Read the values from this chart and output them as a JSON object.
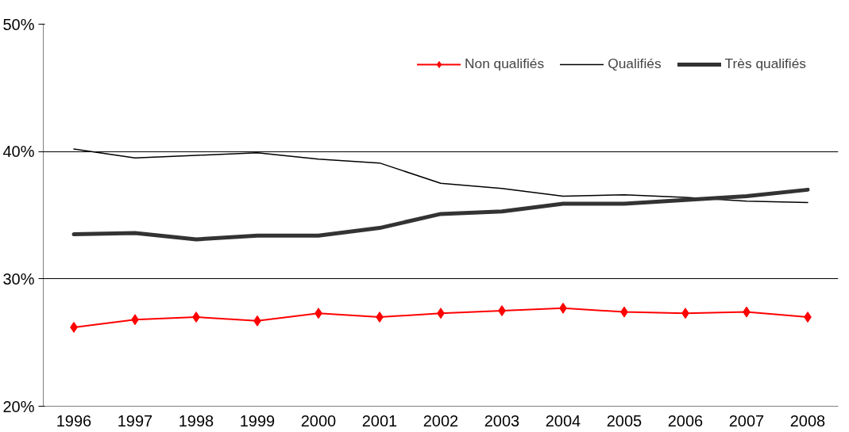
{
  "chart_data": {
    "type": "line",
    "categories": [
      "1996",
      "1997",
      "1998",
      "1999",
      "2000",
      "2001",
      "2002",
      "2003",
      "2004",
      "2005",
      "2006",
      "2007",
      "2008"
    ],
    "series": [
      {
        "name": "Non qualifiés",
        "color": "#ff0000",
        "marker": "diamond",
        "values": [
          26.2,
          26.8,
          27.0,
          26.7,
          27.3,
          27.0,
          27.3,
          27.5,
          27.7,
          27.4,
          27.3,
          27.4,
          27.0
        ]
      },
      {
        "name": "Qualifiés",
        "color": "#000000",
        "marker": "none",
        "values": [
          40.2,
          39.5,
          39.7,
          39.9,
          39.4,
          39.1,
          37.5,
          37.1,
          36.5,
          36.6,
          36.4,
          36.1,
          36.0
        ]
      },
      {
        "name": "Très qualifiés",
        "color": "#333333",
        "marker": "none",
        "values": [
          33.5,
          33.6,
          33.1,
          33.4,
          33.4,
          34.0,
          35.1,
          35.3,
          35.9,
          35.9,
          36.2,
          36.5,
          37.0
        ]
      }
    ],
    "ylim": [
      20,
      50
    ],
    "yticks": [
      {
        "value": 20,
        "label": "20%"
      },
      {
        "value": 30,
        "label": "30%"
      },
      {
        "value": 40,
        "label": "40%"
      },
      {
        "value": 50,
        "label": "50%"
      }
    ],
    "grid": "y",
    "legend": "top right",
    "line_style": "solid"
  }
}
